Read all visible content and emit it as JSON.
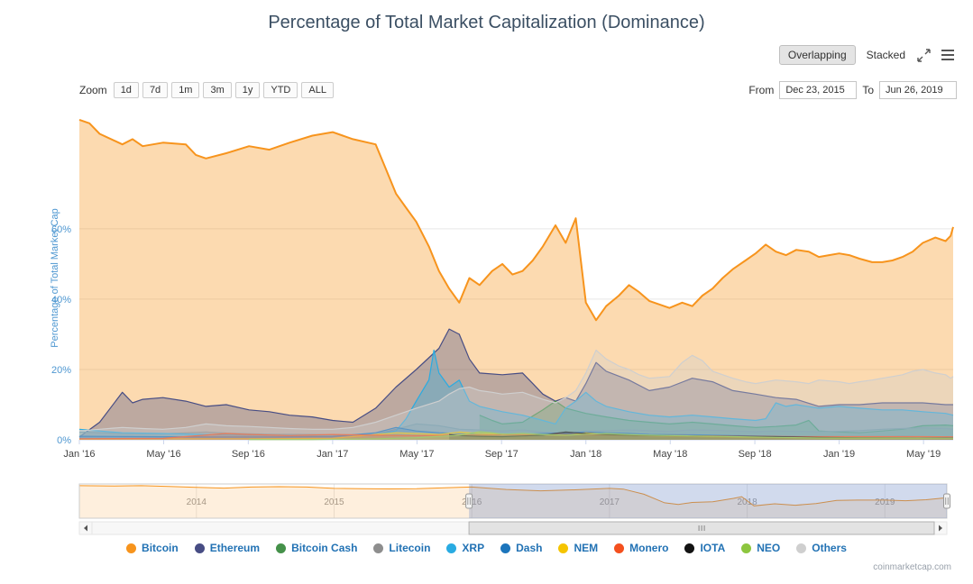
{
  "view_controls": {
    "overlapping_label": "Overlapping",
    "stacked_label": "Stacked"
  },
  "zoom_controls": {
    "label": "Zoom",
    "buttons": [
      "1d",
      "7d",
      "1m",
      "3m",
      "1y",
      "YTD",
      "ALL"
    ]
  },
  "range_selector": {
    "from_label": "From",
    "from_value": "Dec 23, 2015",
    "to_label": "To",
    "to_value": "Jun 26, 2019"
  },
  "watermark": "coinmarketcap.com",
  "colors": {
    "title": "#3b4f63",
    "legend_label": "#2272b4",
    "axis_label": "#4e97d1",
    "x_label": "#444444",
    "grid": "#e6e6e6",
    "axis_line": "#ccd6eb"
  },
  "chart_data": {
    "type": "area",
    "title": "Percentage of Total Market Capitalization (Dominance)",
    "ylabel": "Percentage of Total Market Cap",
    "xlabel": "",
    "legend_position": "bottom",
    "grid": true,
    "xlim": [
      2016.0,
      2019.45
    ],
    "ylim": [
      0,
      92
    ],
    "yticks": [
      {
        "v": 0,
        "label": "0%"
      },
      {
        "v": 20,
        "label": "20%"
      },
      {
        "v": 40,
        "label": "40%"
      },
      {
        "v": 60,
        "label": "60%"
      }
    ],
    "xticks": [
      {
        "v": 2016.0,
        "label": "Jan '16"
      },
      {
        "v": 2016.333,
        "label": "May '16"
      },
      {
        "v": 2016.667,
        "label": "Sep '16"
      },
      {
        "v": 2017.0,
        "label": "Jan '17"
      },
      {
        "v": 2017.333,
        "label": "May '17"
      },
      {
        "v": 2017.667,
        "label": "Sep '17"
      },
      {
        "v": 2018.0,
        "label": "Jan '18"
      },
      {
        "v": 2018.333,
        "label": "May '18"
      },
      {
        "v": 2018.667,
        "label": "Sep '18"
      },
      {
        "v": 2019.0,
        "label": "Jan '19"
      },
      {
        "v": 2019.333,
        "label": "May '19"
      }
    ],
    "series": [
      {
        "name": "Bitcoin",
        "color": "#f7941d",
        "x": [
          2016.0,
          2016.04,
          2016.08,
          2016.17,
          2016.21,
          2016.25,
          2016.33,
          2016.42,
          2016.46,
          2016.5,
          2016.58,
          2016.67,
          2016.75,
          2016.83,
          2016.92,
          2017.0,
          2017.04,
          2017.08,
          2017.17,
          2017.21,
          2017.25,
          2017.29,
          2017.33,
          2017.38,
          2017.42,
          2017.46,
          2017.5,
          2017.54,
          2017.58,
          2017.63,
          2017.67,
          2017.71,
          2017.75,
          2017.79,
          2017.83,
          2017.88,
          2017.92,
          2017.96,
          2018.0,
          2018.04,
          2018.08,
          2018.13,
          2018.17,
          2018.21,
          2018.25,
          2018.33,
          2018.38,
          2018.42,
          2018.46,
          2018.5,
          2018.54,
          2018.58,
          2018.63,
          2018.67,
          2018.71,
          2018.75,
          2018.79,
          2018.83,
          2018.88,
          2018.92,
          2018.96,
          2019.0,
          2019.04,
          2019.08,
          2019.13,
          2019.17,
          2019.21,
          2019.25,
          2019.29,
          2019.33,
          2019.38,
          2019.42,
          2019.44,
          2019.45
        ],
        "values": [
          91,
          90,
          87,
          84,
          85.5,
          83.5,
          84.5,
          84,
          81,
          80,
          81.5,
          83.5,
          82.5,
          84.5,
          86.5,
          87.5,
          86.5,
          85.5,
          84,
          77,
          70,
          66,
          62,
          55,
          48,
          43,
          39,
          46,
          44,
          48,
          50,
          47,
          48,
          51,
          55,
          61,
          56,
          63,
          39,
          34,
          38,
          41,
          44,
          42,
          39.5,
          37.5,
          39,
          38,
          41,
          43,
          46,
          48.5,
          51,
          53,
          55.5,
          53.5,
          52.5,
          54,
          53.5,
          52,
          52.5,
          53,
          52.5,
          51.5,
          50.5,
          50.5,
          51,
          52,
          53.5,
          56,
          57.5,
          56.5,
          58,
          60.5
        ]
      },
      {
        "name": "Ethereum",
        "color": "#474d84",
        "x": [
          2016.0,
          2016.08,
          2016.17,
          2016.21,
          2016.25,
          2016.33,
          2016.42,
          2016.5,
          2016.58,
          2016.67,
          2016.75,
          2016.83,
          2016.92,
          2017.0,
          2017.08,
          2017.17,
          2017.25,
          2017.33,
          2017.42,
          2017.46,
          2017.5,
          2017.54,
          2017.58,
          2017.67,
          2017.75,
          2017.79,
          2017.83,
          2017.88,
          2017.92,
          2017.96,
          2018.0,
          2018.04,
          2018.08,
          2018.17,
          2018.25,
          2018.33,
          2018.42,
          2018.5,
          2018.58,
          2018.67,
          2018.75,
          2018.83,
          2018.92,
          2019.0,
          2019.08,
          2019.17,
          2019.25,
          2019.33,
          2019.42,
          2019.45
        ],
        "values": [
          0.8,
          5,
          13.5,
          10.5,
          11.5,
          12,
          11,
          9.5,
          10,
          8.5,
          8,
          7,
          6.5,
          5.5,
          5,
          9,
          15,
          20,
          26,
          31.5,
          30,
          23,
          19,
          18.5,
          19,
          16,
          13,
          11,
          12,
          11,
          16,
          22,
          19.5,
          17,
          14,
          15,
          17.5,
          16.5,
          14,
          13,
          12,
          11.5,
          9.5,
          10,
          10,
          10.5,
          10.5,
          10.5,
          10,
          10
        ]
      },
      {
        "name": "Bitcoin Cash",
        "color": "#45914a",
        "x": [
          2017.58,
          2017.63,
          2017.67,
          2017.75,
          2017.83,
          2017.88,
          2017.92,
          2018.0,
          2018.08,
          2018.17,
          2018.25,
          2018.33,
          2018.42,
          2018.5,
          2018.58,
          2018.67,
          2018.75,
          2018.83,
          2018.88,
          2018.92,
          2019.0,
          2019.08,
          2019.17,
          2019.25,
          2019.33,
          2019.42,
          2019.45
        ],
        "values": [
          7,
          5.5,
          4.5,
          5,
          8.5,
          11,
          9,
          7.5,
          6.5,
          5.5,
          5,
          4.5,
          5,
          4.5,
          4,
          3.5,
          3.8,
          4.2,
          5.5,
          2.5,
          2.2,
          2,
          2.5,
          3,
          4,
          4.2,
          4
        ]
      },
      {
        "name": "Litecoin",
        "color": "#8e8e8e",
        "x": [
          2016.0,
          2016.17,
          2016.33,
          2016.5,
          2016.58,
          2016.75,
          2016.92,
          2017.0,
          2017.17,
          2017.25,
          2017.33,
          2017.42,
          2017.5,
          2017.58,
          2017.67,
          2017.75,
          2017.83,
          2017.92,
          2018.0,
          2018.08,
          2018.17,
          2018.25,
          2018.33,
          2018.42,
          2018.5,
          2018.58,
          2018.67,
          2018.75,
          2018.83,
          2018.92,
          2019.0,
          2019.08,
          2019.17,
          2019.25,
          2019.33,
          2019.42,
          2019.45
        ],
        "values": [
          2.2,
          1.8,
          1.7,
          2.2,
          1.9,
          1.6,
          1.5,
          1.4,
          1.5,
          3,
          4.5,
          4,
          3,
          2.8,
          2.5,
          2.8,
          2.2,
          2,
          2.5,
          2.6,
          2.8,
          2.6,
          2.4,
          2.8,
          2.7,
          2.5,
          2.3,
          2.5,
          2.4,
          2.3,
          2.4,
          2.6,
          3,
          3.2,
          3.4,
          3.2,
          3
        ]
      },
      {
        "name": "XRP",
        "color": "#29abe2",
        "x": [
          2016.0,
          2016.08,
          2016.17,
          2016.33,
          2016.5,
          2016.67,
          2016.83,
          2017.0,
          2017.17,
          2017.25,
          2017.29,
          2017.33,
          2017.38,
          2017.4,
          2017.42,
          2017.46,
          2017.5,
          2017.54,
          2017.58,
          2017.67,
          2017.75,
          2017.83,
          2017.88,
          2017.92,
          2017.96,
          2018.0,
          2018.04,
          2018.08,
          2018.17,
          2018.25,
          2018.33,
          2018.42,
          2018.5,
          2018.58,
          2018.67,
          2018.71,
          2018.75,
          2018.79,
          2018.83,
          2018.92,
          2019.0,
          2019.08,
          2019.17,
          2019.25,
          2019.33,
          2019.42,
          2019.45
        ],
        "values": [
          3,
          2.5,
          2,
          1.8,
          1.5,
          1.3,
          1.2,
          1.2,
          1.5,
          2.5,
          6,
          11,
          17,
          25.5,
          19,
          15,
          17,
          11,
          9.5,
          8,
          7,
          5.5,
          4.5,
          9,
          11,
          13.5,
          11,
          9.5,
          8,
          7,
          6.5,
          7,
          6.5,
          6,
          5.5,
          6,
          10.5,
          9.5,
          10,
          9,
          9.5,
          9,
          8.5,
          8.5,
          8,
          7.5,
          7
        ]
      },
      {
        "name": "Dash",
        "color": "#1c75bc",
        "x": [
          2016.0,
          2016.25,
          2016.5,
          2016.75,
          2017.0,
          2017.17,
          2017.25,
          2017.33,
          2017.42,
          2017.5,
          2017.58,
          2017.67,
          2017.75,
          2017.83,
          2017.92,
          2018.0,
          2018.08,
          2018.17,
          2018.25,
          2018.42,
          2018.58,
          2018.75,
          2018.92,
          2019.08,
          2019.25,
          2019.42,
          2019.45
        ],
        "values": [
          1,
          0.9,
          0.8,
          0.8,
          0.9,
          2,
          3.5,
          2.5,
          2,
          1.8,
          1.5,
          1.3,
          1.5,
          1.8,
          2,
          2.2,
          2,
          1.8,
          1.5,
          1.4,
          1.2,
          1,
          0.8,
          0.8,
          0.9,
          0.8,
          0.8
        ]
      },
      {
        "name": "NEM",
        "color": "#f5c400",
        "x": [
          2016.0,
          2016.33,
          2016.67,
          2017.0,
          2017.17,
          2017.25,
          2017.33,
          2017.42,
          2017.5,
          2017.58,
          2017.75,
          2017.92,
          2018.0,
          2018.08,
          2018.17,
          2018.33,
          2018.5,
          2018.67,
          2018.83,
          2019.0,
          2019.17,
          2019.33,
          2019.45
        ],
        "values": [
          0.2,
          0.3,
          0.3,
          0.4,
          1.5,
          2,
          1.8,
          1.5,
          2.2,
          1.8,
          1.5,
          1.2,
          2,
          1.5,
          1.2,
          1,
          0.8,
          0.6,
          0.5,
          0.4,
          0.4,
          0.4,
          0.35
        ]
      },
      {
        "name": "Monero",
        "color": "#f4501e",
        "x": [
          2016.0,
          2016.33,
          2016.58,
          2016.67,
          2016.83,
          2017.0,
          2017.17,
          2017.33,
          2017.5,
          2017.67,
          2017.83,
          2018.0,
          2018.17,
          2018.33,
          2018.5,
          2018.67,
          2018.83,
          2019.0,
          2019.17,
          2019.33,
          2019.45
        ],
        "values": [
          0.3,
          0.4,
          1.8,
          1.5,
          1.2,
          1.5,
          1.3,
          1.2,
          1.3,
          1.4,
          1.5,
          1.4,
          1.3,
          1.2,
          1.1,
          1,
          0.9,
          0.9,
          0.9,
          0.9,
          0.85
        ]
      },
      {
        "name": "IOTA",
        "color": "#131313",
        "x": [
          2017.46,
          2017.5,
          2017.58,
          2017.67,
          2017.75,
          2017.83,
          2017.92,
          2018.0,
          2018.08,
          2018.17,
          2018.25,
          2018.42,
          2018.58,
          2018.75,
          2018.92,
          2019.08,
          2019.25,
          2019.42,
          2019.45
        ],
        "values": [
          1.5,
          1.2,
          1,
          0.9,
          1.1,
          1.3,
          2.2,
          1.8,
          1.5,
          1.3,
          1.2,
          1.1,
          1,
          0.9,
          0.7,
          0.6,
          0.55,
          0.5,
          0.5
        ]
      },
      {
        "name": "NEO",
        "color": "#8dc63f",
        "x": [
          2016.67,
          2016.92,
          2017.0,
          2017.17,
          2017.33,
          2017.42,
          2017.5,
          2017.58,
          2017.63,
          2017.67,
          2017.75,
          2017.83,
          2017.92,
          2018.0,
          2018.08,
          2018.17,
          2018.25,
          2018.42,
          2018.58,
          2018.75,
          2018.92,
          2019.08,
          2019.25,
          2019.42,
          2019.45
        ],
        "values": [
          0.1,
          0.1,
          0.15,
          0.3,
          0.6,
          1,
          1.3,
          2.3,
          2,
          1.6,
          1.8,
          1.5,
          1.3,
          1.6,
          1.8,
          1.5,
          1.3,
          1.1,
          0.9,
          0.7,
          0.5,
          0.5,
          0.5,
          0.45,
          0.45
        ]
      },
      {
        "name": "Others",
        "color": "#cfcfcf",
        "x": [
          2016.0,
          2016.08,
          2016.17,
          2016.25,
          2016.33,
          2016.42,
          2016.5,
          2016.58,
          2016.67,
          2016.75,
          2016.83,
          2016.92,
          2017.0,
          2017.08,
          2017.17,
          2017.25,
          2017.33,
          2017.42,
          2017.46,
          2017.5,
          2017.54,
          2017.58,
          2017.63,
          2017.67,
          2017.75,
          2017.79,
          2017.83,
          2017.88,
          2017.92,
          2017.96,
          2018.0,
          2018.04,
          2018.08,
          2018.13,
          2018.17,
          2018.21,
          2018.25,
          2018.33,
          2018.38,
          2018.42,
          2018.46,
          2018.5,
          2018.54,
          2018.58,
          2018.63,
          2018.67,
          2018.75,
          2018.83,
          2018.88,
          2018.92,
          2019.0,
          2019.04,
          2019.08,
          2019.13,
          2019.17,
          2019.21,
          2019.25,
          2019.29,
          2019.33,
          2019.38,
          2019.42,
          2019.44,
          2019.45
        ],
        "values": [
          2.5,
          3,
          3.5,
          3.2,
          3,
          3.5,
          4.5,
          4,
          3.8,
          3.5,
          3.2,
          3,
          3,
          3.5,
          5,
          7,
          9,
          11,
          13,
          14.5,
          15,
          14,
          13.5,
          13,
          13.5,
          12.5,
          11.5,
          10.5,
          12,
          14,
          19,
          25.5,
          23,
          21,
          20,
          18.5,
          17.5,
          18,
          22,
          24,
          22.5,
          19.5,
          18.5,
          17.5,
          16.5,
          16,
          17,
          16.5,
          16,
          17,
          16.5,
          16,
          16.5,
          17,
          17.5,
          18,
          18.5,
          19.5,
          20,
          19,
          18.5,
          17.5,
          18
        ]
      }
    ],
    "navigator": {
      "xlim": [
        2013.15,
        2019.45
      ],
      "selected_from": 2015.98,
      "selected_to": 2019.45,
      "mask_color": "rgba(102,133,194,0.3)",
      "years": [
        {
          "v": 2014,
          "label": "2014"
        },
        {
          "v": 2015,
          "label": "2015"
        },
        {
          "v": 2016,
          "label": "2016"
        },
        {
          "v": 2017,
          "label": "2017"
        },
        {
          "v": 2018,
          "label": "2018"
        },
        {
          "v": 2019,
          "label": "2019"
        }
      ],
      "x": [
        2013.15,
        2013.4,
        2013.6,
        2013.8,
        2014.0,
        2014.2,
        2014.4,
        2014.6,
        2014.8,
        2015.0,
        2015.2,
        2015.4,
        2015.6,
        2015.8,
        2016.0,
        2016.25,
        2016.5,
        2016.75,
        2017.0,
        2017.1,
        2017.25,
        2017.4,
        2017.5,
        2017.6,
        2017.75,
        2017.9,
        2017.96,
        2018.05,
        2018.2,
        2018.35,
        2018.5,
        2018.65,
        2018.8,
        2019.0,
        2019.15,
        2019.3,
        2019.45
      ],
      "values": [
        95,
        94,
        95,
        93,
        90,
        88,
        91,
        92,
        91,
        87,
        86,
        85.5,
        86,
        89,
        91,
        84,
        80,
        83,
        87,
        85,
        70,
        45,
        40,
        46,
        48,
        58,
        63,
        36,
        42,
        38,
        43,
        52,
        53,
        53,
        51,
        54,
        60
      ]
    }
  }
}
